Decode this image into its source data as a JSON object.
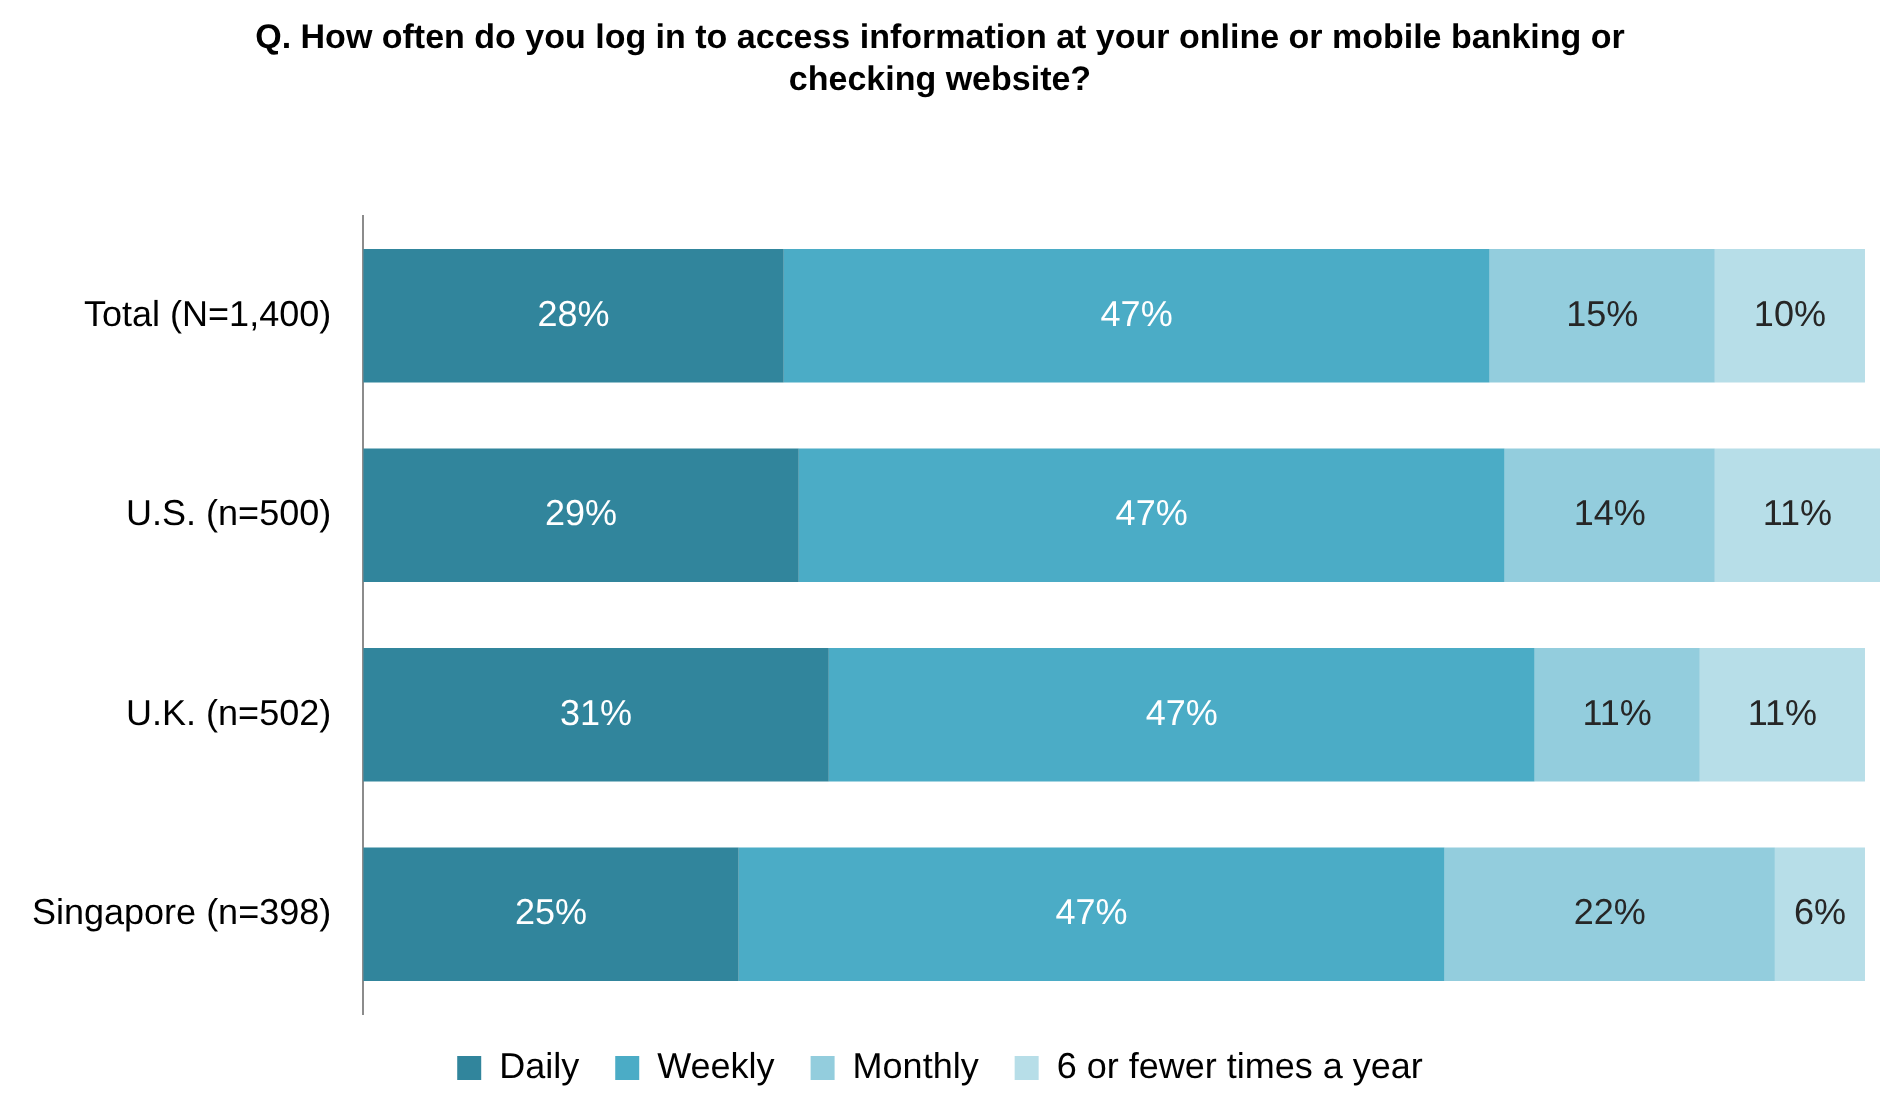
{
  "chart_data": {
    "type": "bar",
    "orientation": "horizontal",
    "stacked": true,
    "title": "Q. How often do you log in to access information at your online or mobile banking or checking website?",
    "categories": [
      "Total (N=1,400)",
      "U.S. (n=500)",
      "U.K. (n=502)",
      "Singapore (n=398)"
    ],
    "series": [
      {
        "name": "Daily",
        "color": "#31859c",
        "values": [
          28,
          29,
          31,
          25
        ],
        "value_labels": [
          "28%",
          "29%",
          "31%",
          "25%"
        ]
      },
      {
        "name": "Weekly",
        "color": "#4bacc6",
        "values": [
          47,
          47,
          47,
          47
        ],
        "value_labels": [
          "47%",
          "47%",
          "47%",
          "47%"
        ]
      },
      {
        "name": "Monthly",
        "color": "#93cddd",
        "values": [
          15,
          14,
          11,
          22
        ],
        "value_labels": [
          "15%",
          "14%",
          "11%",
          "22%"
        ]
      },
      {
        "name": "6 or fewer times a year",
        "color": "#b7dee8",
        "values": [
          10,
          11,
          11,
          6
        ],
        "value_labels": [
          "10%",
          "11%",
          "11%",
          "6%"
        ]
      }
    ],
    "grid": false,
    "legend": "bottom"
  }
}
